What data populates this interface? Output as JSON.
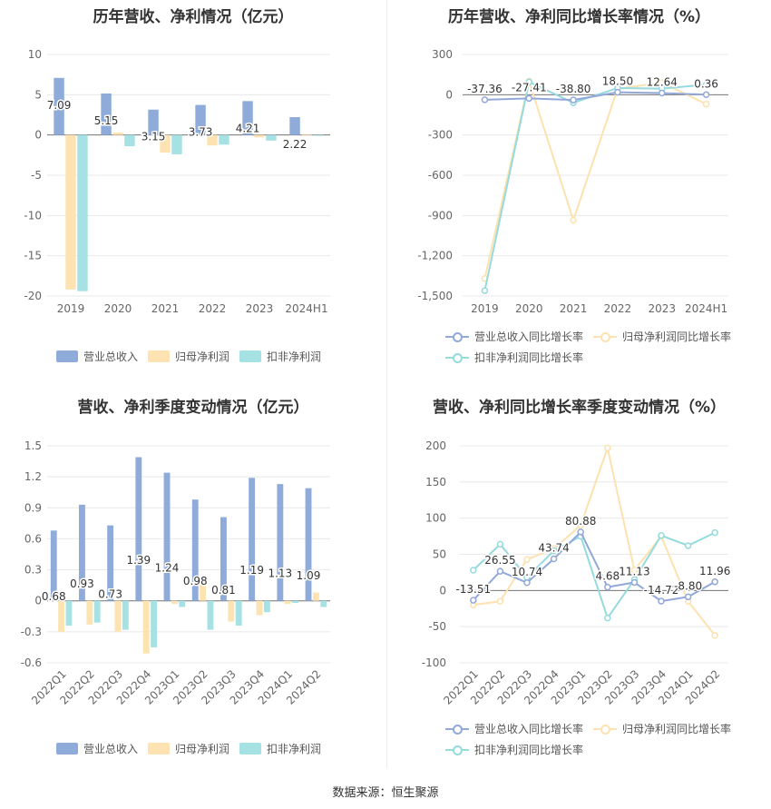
{
  "source": "数据来源：恒生聚源",
  "colors": {
    "revenue": "#8eabd9",
    "net_profit": "#fde3b2",
    "deducted_profit": "#a6e2e3",
    "revenue_line": "#91a8d8",
    "net_line": "#fde2b0",
    "deducted_line": "#95dadd"
  },
  "panels": [
    {
      "title": "历年营收、净利情况（亿元）",
      "legend": [
        "营业总收入",
        "归母净利润",
        "扣非净利润"
      ],
      "chart_data": {
        "type": "bar",
        "categories": [
          "2019",
          "2020",
          "2021",
          "2022",
          "2023",
          "2024H1"
        ],
        "series": [
          {
            "name": "营业总收入",
            "values": [
              7.09,
              5.15,
              3.15,
              3.73,
              4.21,
              2.22
            ],
            "labels": [
              "7.09",
              "5.15",
              "3.15",
              "3.73",
              "4.21",
              "2.22"
            ]
          },
          {
            "name": "归母净利润",
            "values": [
              -19.2,
              0.3,
              -2.2,
              -1.3,
              -0.3,
              0.1
            ]
          },
          {
            "name": "扣非净利润",
            "values": [
              -19.4,
              -1.4,
              -2.4,
              -1.2,
              -0.7,
              -0.1
            ]
          }
        ],
        "yticks": [
          "10",
          "5",
          "0",
          "-5",
          "-10",
          "-15",
          "-20"
        ],
        "ylim": [
          -20,
          10
        ],
        "grid": true
      }
    },
    {
      "title": "历年营收、净利同比增长率情况（%）",
      "legend": [
        "营业总收入同比增长率",
        "归母净利润同比增长率",
        "扣非净利润同比增长率"
      ],
      "chart_data": {
        "type": "line",
        "categories": [
          "2019",
          "2020",
          "2021",
          "2022",
          "2023",
          "2024H1"
        ],
        "series": [
          {
            "name": "营业总收入同比增长率",
            "values": [
              -37.36,
              -27.41,
              -38.8,
              18.5,
              12.64,
              0.36
            ],
            "labels": [
              "-37.36",
              "-27.41",
              "-38.80",
              "18.50",
              "12.64",
              "0.36"
            ]
          },
          {
            "name": "归母净利润同比增长率",
            "values": [
              -1370,
              100,
              -935,
              45,
              90,
              -70
            ]
          },
          {
            "name": "扣非净利润同比增长率",
            "values": [
              -1460,
              95,
              -60,
              50,
              45,
              75
            ]
          }
        ],
        "yticks": [
          "300",
          "0",
          "-300",
          "-600",
          "-900",
          "-1,200",
          "-1,500"
        ],
        "ylim": [
          -1500,
          300
        ],
        "grid": true
      }
    },
    {
      "title": "营收、净利季度变动情况（亿元）",
      "legend": [
        "营业总收入",
        "归母净利润",
        "扣非净利润"
      ],
      "chart_data": {
        "type": "bar",
        "categories": [
          "2022Q1",
          "2022Q2",
          "2022Q3",
          "2022Q4",
          "2023Q1",
          "2023Q2",
          "2023Q3",
          "2023Q4",
          "2024Q1",
          "2024Q2"
        ],
        "series": [
          {
            "name": "营业总收入",
            "values": [
              0.68,
              0.93,
              0.73,
              1.39,
              1.24,
              0.98,
              0.81,
              1.19,
              1.13,
              1.09
            ],
            "labels": [
              "0.68",
              "0.93",
              "0.73",
              "1.39",
              "1.24",
              "0.98",
              "0.81",
              "1.19",
              "1.13",
              "1.09"
            ]
          },
          {
            "name": "归母净利润",
            "values": [
              -0.3,
              -0.23,
              -0.3,
              -0.51,
              -0.03,
              0.22,
              -0.2,
              -0.14,
              -0.03,
              0.08
            ]
          },
          {
            "name": "扣非净利润",
            "values": [
              -0.24,
              -0.21,
              -0.28,
              -0.45,
              -0.06,
              -0.28,
              -0.24,
              -0.11,
              -0.02,
              -0.06
            ]
          }
        ],
        "yticks": [
          "1.5",
          "1.2",
          "0.9",
          "0.6",
          "0.3",
          "0",
          "-0.3",
          "-0.6"
        ],
        "ylim": [
          -0.6,
          1.5
        ],
        "grid": true
      }
    },
    {
      "title": "营收、净利同比增长率季度变动情况（%）",
      "legend": [
        "营业总收入同比增长率",
        "归母净利润同比增长率",
        "扣非净利润同比增长率"
      ],
      "chart_data": {
        "type": "line",
        "categories": [
          "2022Q1",
          "2022Q2",
          "2022Q3",
          "2022Q4",
          "2023Q1",
          "2023Q2",
          "2023Q3",
          "2023Q4",
          "2024Q1",
          "2024Q2"
        ],
        "series": [
          {
            "name": "营业总收入同比增长率",
            "values": [
              -13.51,
              26.55,
              10.74,
              43.74,
              80.88,
              4.68,
              11.13,
              -14.72,
              -8.8,
              11.96
            ],
            "labels": [
              "-13.51",
              "26.55",
              "10.74",
              "43.74",
              "80.88",
              "4.68",
              "11.13",
              "-14.72",
              "-8.80",
              "11.96"
            ]
          },
          {
            "name": "归母净利润同比增长率",
            "values": [
              -20,
              -15,
              43,
              58,
              90,
              197,
              28,
              75,
              -15,
              -62
            ]
          },
          {
            "name": "扣非净利润同比增长率",
            "values": [
              28,
              64,
              18,
              55,
              75,
              -38,
              15,
              76,
              62,
              80
            ]
          }
        ],
        "yticks": [
          "200",
          "150",
          "100",
          "50",
          "0",
          "-50",
          "-100"
        ],
        "ylim": [
          -100,
          200
        ],
        "grid": true
      }
    }
  ]
}
